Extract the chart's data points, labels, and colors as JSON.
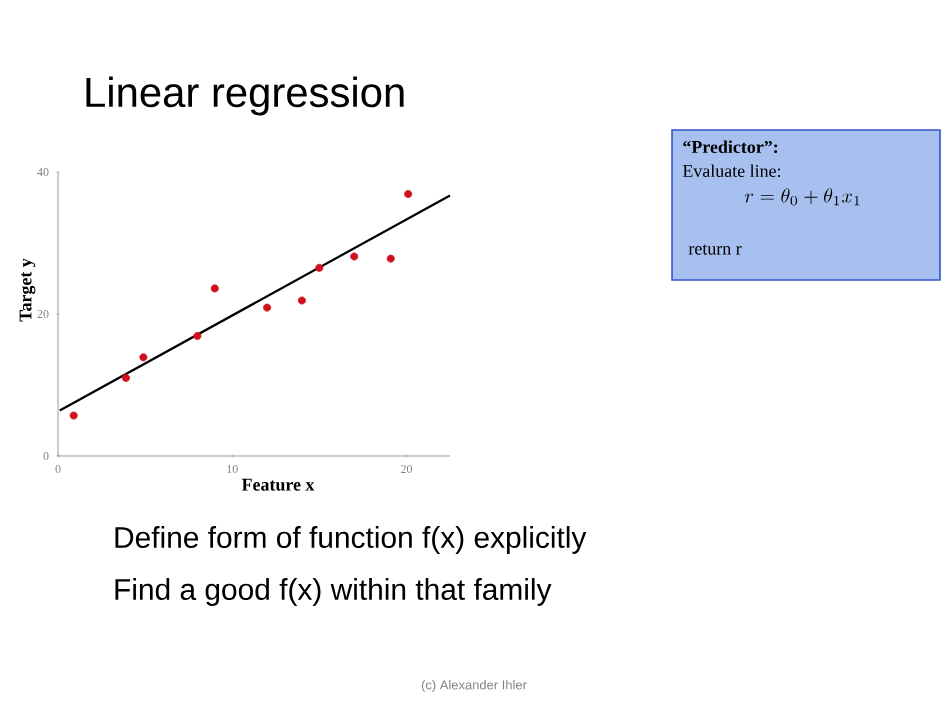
{
  "chart_data": {
    "type": "scatter",
    "title": "Linear regression",
    "xlabel": "Feature x",
    "ylabel": "Target  y",
    "xlim": [
      0,
      22.5
    ],
    "ylim": [
      0,
      40
    ],
    "xticks": [
      0,
      10,
      20
    ],
    "yticks": [
      0,
      20,
      40
    ],
    "series": [
      {
        "marker": "circle",
        "color": "#d0101c",
        "x": [
          0.9,
          3.9,
          4.9,
          8.0,
          9.0,
          12.0,
          14.0,
          15.0,
          17.0,
          19.1,
          20.1
        ],
        "values": [
          5.7,
          11.0,
          13.9,
          16.9,
          23.6,
          20.9,
          21.9,
          26.5,
          28.1,
          27.8,
          36.9
        ]
      },
      {
        "type": "line",
        "color": "#000000",
        "x": [
          0.1,
          22.5
        ],
        "values": [
          6.4,
          36.7
        ]
      }
    ],
    "annotations": [
      "“Predictor”:",
      "Evaluate line:",
      "r = \\theta_0 + \\theta_1 x_1",
      "return r",
      "Define form of function f(x) explicitly",
      "Find a good f(x) within that family",
      "(c) Alexander Ihler"
    ]
  }
}
